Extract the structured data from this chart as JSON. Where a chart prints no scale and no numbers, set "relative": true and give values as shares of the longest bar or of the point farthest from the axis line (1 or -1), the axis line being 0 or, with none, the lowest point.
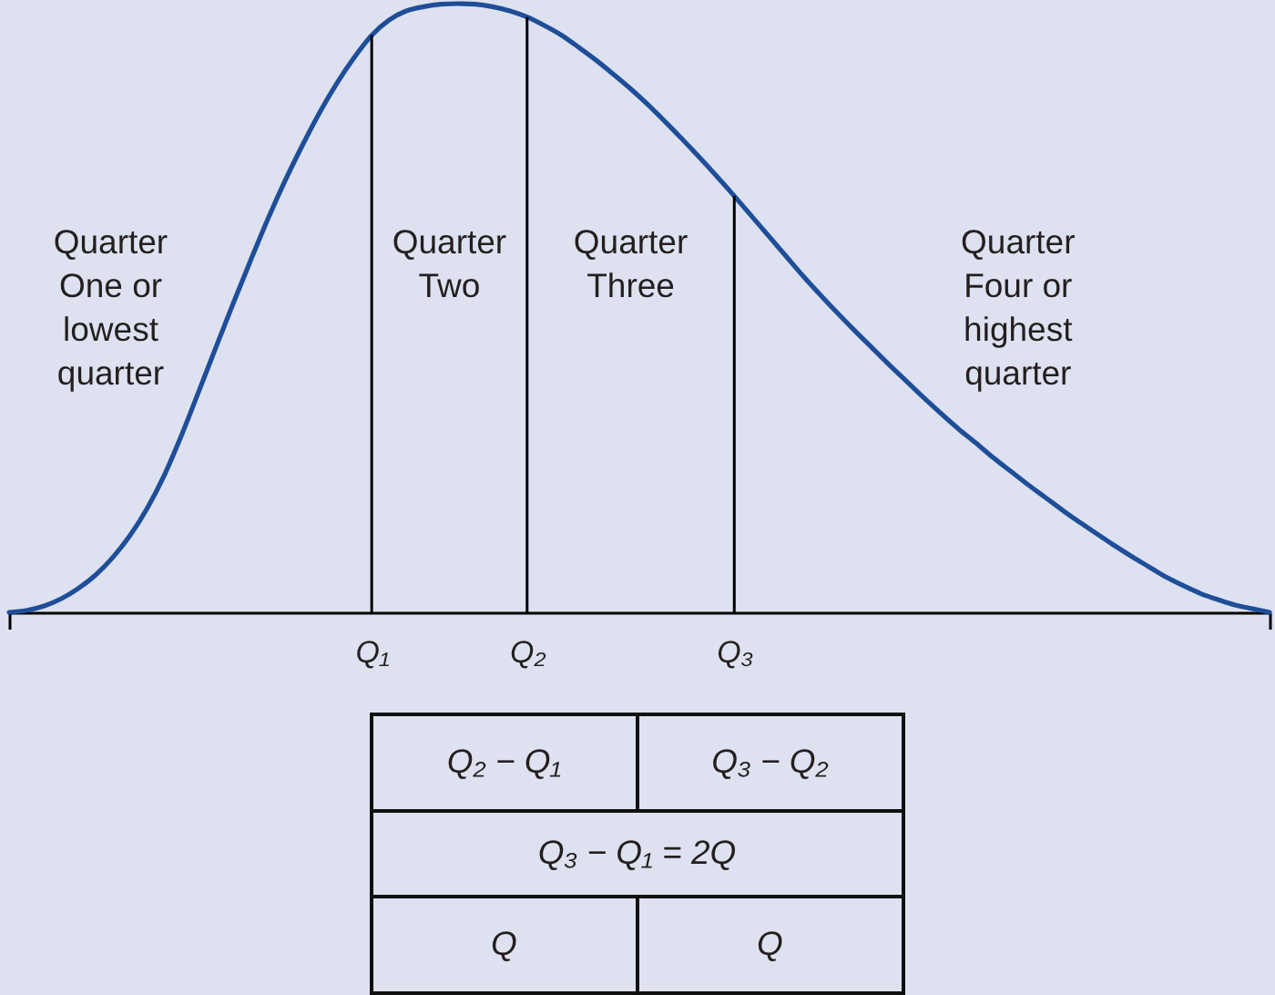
{
  "chart_data": {
    "type": "line",
    "relative": true,
    "categories": [
      null,
      null,
      null,
      null,
      null,
      null,
      null,
      null,
      null,
      null,
      null,
      null,
      null,
      null,
      null,
      null,
      null,
      null,
      null,
      null,
      null,
      "Q₁",
      null,
      null,
      null,
      null,
      null,
      null,
      null,
      null,
      "Q₂",
      null,
      null,
      null,
      null,
      null,
      null,
      null,
      null,
      null,
      null,
      null,
      "Q₃",
      null,
      null,
      null,
      null,
      null,
      null,
      null,
      null,
      null,
      null,
      null,
      null,
      null,
      null,
      null,
      null,
      null,
      null,
      null,
      null,
      null,
      null,
      null,
      null,
      null,
      null,
      null,
      null,
      null,
      null,
      null
    ],
    "values": [
      0,
      0.003,
      0.01,
      0.022,
      0.039,
      0.061,
      0.09,
      0.126,
      0.171,
      0.226,
      0.292,
      0.364,
      0.437,
      0.509,
      0.579,
      0.647,
      0.71,
      0.768,
      0.822,
      0.87,
      0.912,
      0.948,
      0.973,
      0.988,
      0.995,
      0.999,
      1,
      0.999,
      0.995,
      0.988,
      0.978,
      0.964,
      0.948,
      0.928,
      0.907,
      0.884,
      0.86,
      0.834,
      0.806,
      0.777,
      0.747,
      0.716,
      0.684,
      0.651,
      0.618,
      0.585,
      0.552,
      0.521,
      0.491,
      0.462,
      0.434,
      0.406,
      0.379,
      0.352,
      0.326,
      0.301,
      0.278,
      0.254,
      0.232,
      0.21,
      0.189,
      0.168,
      0.148,
      0.129,
      0.11,
      0.092,
      0.075,
      0.058,
      0.044,
      0.031,
      0.021,
      0.012,
      0.006,
      0
    ],
    "color": "#1f4e99",
    "ref_lines": [
      {
        "axis": "x",
        "value": "Q₁",
        "color": "#000000"
      },
      {
        "axis": "x",
        "value": "Q₂",
        "color": "#000000"
      },
      {
        "axis": "x",
        "value": "Q₃",
        "color": "#000000"
      }
    ],
    "annotations": [
      "Quarter\nOne or\nlowest\nquarter",
      "Quarter\nTwo",
      "Quarter\nThree",
      "Quarter\nFour or\nhighest\nquarter",
      "Q₂ − Q₁",
      "Q₃ − Q₂",
      "Q₃ − Q₁ = 2Q",
      "Q",
      "Q"
    ]
  }
}
